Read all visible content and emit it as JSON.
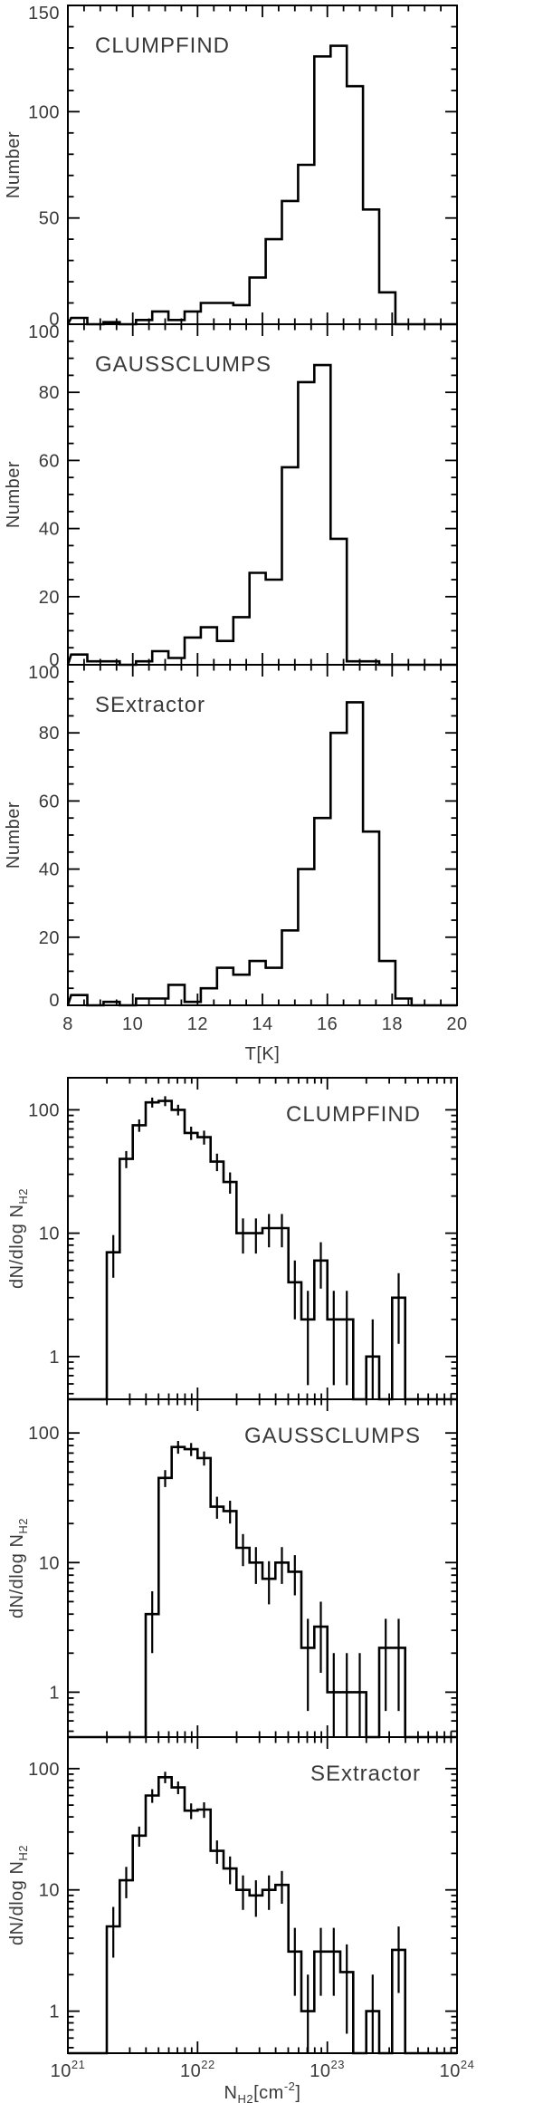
{
  "figure": {
    "background": "#ffffff",
    "line_color": "#000000",
    "text_color": "#3a3a3a"
  },
  "top_group": {
    "ylabel": "Number",
    "xlabel": "T[K]",
    "x_tick_labels": [
      "8",
      "10",
      "12",
      "14",
      "16",
      "18",
      "20"
    ],
    "x_tick_values": [
      8,
      10,
      12,
      14,
      16,
      18,
      20
    ],
    "x_minor_step": 0.5,
    "x_range": [
      8,
      20
    ],
    "panels": [
      {
        "y_tick_labels": [
          "0",
          "50",
          "100",
          "150"
        ],
        "y_tick_values": [
          0,
          50,
          100,
          150
        ],
        "y_minor_step": 10,
        "y_max": 150
      },
      {
        "y_tick_labels": [
          "0",
          "20",
          "40",
          "60",
          "80",
          "100"
        ],
        "y_tick_values": [
          0,
          20,
          40,
          60,
          80,
          100
        ],
        "y_minor_step": 5,
        "y_max": 100
      },
      {
        "y_tick_labels": [
          "0",
          "20",
          "40",
          "60",
          "80",
          "100"
        ],
        "y_tick_values": [
          0,
          20,
          40,
          60,
          80,
          100
        ],
        "y_minor_step": 5,
        "y_max": 100
      }
    ]
  },
  "bottom_group": {
    "ylabel_prefix": "dN/dlog N",
    "ylabel_subscript": "H2",
    "xlabel_parts": {
      "base": "N",
      "sub": "H2",
      "mid": "[cm",
      "sup": "-2",
      "end": "]"
    },
    "x_tick_base": "10",
    "x_tick_exponents": [
      "21",
      "22",
      "23",
      "24"
    ],
    "x_range_log10": [
      21,
      24
    ],
    "y_tick_labels": [
      "1",
      "10",
      "100"
    ],
    "y_tick_values": [
      1,
      10,
      100
    ],
    "y_range": [
      0.45,
      182
    ],
    "error_bars": "sqrt(N)"
  },
  "chart_data": [
    {
      "type": "histogram",
      "group": "temperature",
      "title": "CLUMPFIND",
      "xlabel": "T[K]",
      "ylabel": "Number",
      "xlim": [
        8,
        20
      ],
      "ylim": [
        0,
        150
      ],
      "bin_start": 8.1,
      "bin_width": 0.5,
      "counts": [
        3,
        0,
        1,
        0,
        2,
        6,
        2,
        6,
        10,
        10,
        9,
        22,
        40,
        58,
        75,
        126,
        131,
        112,
        54,
        15,
        0,
        0,
        0,
        0
      ]
    },
    {
      "type": "histogram",
      "group": "temperature",
      "title": "GAUSSCLUMPS",
      "xlabel": "T[K]",
      "ylabel": "Number",
      "xlim": [
        8,
        20
      ],
      "ylim": [
        0,
        100
      ],
      "bin_start": 8.1,
      "bin_width": 0.5,
      "counts": [
        3,
        1,
        1,
        0,
        1,
        4,
        2,
        8,
        11,
        7,
        14,
        27,
        25,
        58,
        83,
        88,
        37,
        1,
        1,
        0,
        0,
        0,
        0,
        0
      ]
    },
    {
      "type": "histogram",
      "group": "temperature",
      "title": "SExtractor",
      "xlabel": "T[K]",
      "ylabel": "Number",
      "xlim": [
        8,
        20
      ],
      "ylim": [
        0,
        100
      ],
      "bin_start": 8.1,
      "bin_width": 0.5,
      "counts": [
        3,
        0,
        1,
        0,
        2,
        2,
        6,
        1,
        5,
        11,
        9,
        13,
        11,
        22,
        40,
        55,
        80,
        89,
        51,
        13,
        2,
        0,
        0,
        0
      ]
    },
    {
      "type": "histogram-log",
      "group": "column-density",
      "title": "CLUMPFIND",
      "xlabel": "N_H2 [cm^-2]",
      "ylabel": "dN/dlog N_H2",
      "xlim_log10": [
        21,
        24
      ],
      "ylim": [
        0.45,
        182
      ],
      "errors": "sqrt",
      "log10_bin_start": 21.0,
      "log10_bin_width": 0.1,
      "values": [
        0,
        0,
        0,
        7,
        40,
        75,
        115,
        118,
        100,
        65,
        60,
        38,
        26,
        10,
        10,
        11,
        11,
        4,
        2,
        6,
        2,
        2,
        0,
        1,
        0,
        3,
        0,
        0,
        0,
        0
      ]
    },
    {
      "type": "histogram-log",
      "group": "column-density",
      "title": "GAUSSCLUMPS",
      "xlabel": "N_H2 [cm^-2]",
      "ylabel": "dN/dlog N_H2",
      "xlim_log10": [
        21,
        24
      ],
      "ylim": [
        0.45,
        182
      ],
      "errors": "sqrt",
      "log10_bin_start": 21.0,
      "log10_bin_width": 0.1,
      "values": [
        0,
        0,
        0,
        0,
        0,
        0,
        4,
        45,
        78,
        75,
        64,
        27,
        25,
        13,
        10,
        7.5,
        10,
        8.5,
        2.2,
        3.2,
        1,
        1,
        1,
        0,
        2.2,
        2.2,
        0,
        0,
        0,
        0
      ]
    },
    {
      "type": "histogram-log",
      "group": "column-density",
      "title": "SExtractor",
      "xlabel": "N_H2 [cm^-2]",
      "ylabel": "dN/dlog N_H2",
      "xlim_log10": [
        21,
        24
      ],
      "ylim": [
        0.45,
        182
      ],
      "errors": "sqrt",
      "log10_bin_start": 21.0,
      "log10_bin_width": 0.1,
      "values": [
        0,
        0,
        0,
        5,
        12,
        28,
        60,
        85,
        70,
        45,
        46,
        21,
        15,
        10,
        9,
        10,
        11,
        3.1,
        1,
        3.1,
        3.1,
        2.1,
        0,
        1,
        0,
        3.2,
        0,
        0,
        0,
        0
      ]
    }
  ]
}
